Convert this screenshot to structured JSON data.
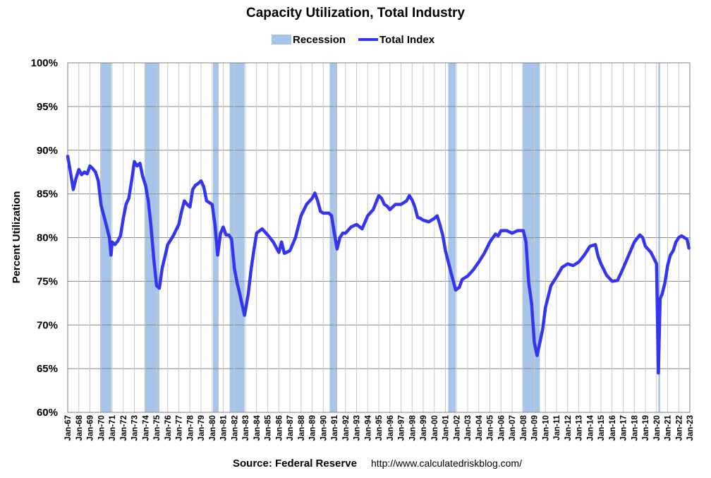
{
  "chart_data": {
    "type": "line",
    "title": "Capacity Utilization, Total Industry",
    "ylabel": "Percent Utilization",
    "xlabel": "",
    "ylim": [
      60,
      100
    ],
    "xlim": [
      1967.0,
      2023.0
    ],
    "yticks": [
      60,
      65,
      70,
      75,
      80,
      85,
      90,
      95,
      100
    ],
    "ytick_labels": [
      "60%",
      "65%",
      "70%",
      "75%",
      "80%",
      "85%",
      "90%",
      "95%",
      "100%"
    ],
    "xtick_labels": [
      "Jan-67",
      "Jan-68",
      "Jan-69",
      "Jan-70",
      "Jan-71",
      "Jan-72",
      "Jan-73",
      "Jan-74",
      "Jan-75",
      "Jan-76",
      "Jan-77",
      "Jan-78",
      "Jan-79",
      "Jan-80",
      "Jan-81",
      "Jan-82",
      "Jan-83",
      "Jan-84",
      "Jan-85",
      "Jan-86",
      "Jan-87",
      "Jan-88",
      "Jan-89",
      "Jan-90",
      "Jan-91",
      "Jan-92",
      "Jan-93",
      "Jan-94",
      "Jan-95",
      "Jan-96",
      "Jan-97",
      "Jan-98",
      "Jan-99",
      "Jan-00",
      "Jan-01",
      "Jan-02",
      "Jan-03",
      "Jan-04",
      "Jan-05",
      "Jan-06",
      "Jan-07",
      "Jan-08",
      "Jan-09",
      "Jan-10",
      "Jan-11",
      "Jan-12",
      "Jan-13",
      "Jan-14",
      "Jan-15",
      "Jan-16",
      "Jan-17",
      "Jan-18",
      "Jan-19",
      "Jan-20",
      "Jan-21",
      "Jan-22",
      "Jan-23"
    ],
    "grid": true,
    "legend": {
      "placement": "top-center",
      "items": [
        {
          "label": "Recession",
          "color": "#a7c4ea"
        },
        {
          "label": "Total Index",
          "color": "#3535f0"
        }
      ]
    },
    "recessions": [
      [
        1969.92,
        1970.92
      ],
      [
        1973.92,
        1975.25
      ],
      [
        1980.08,
        1980.58
      ],
      [
        1981.58,
        1982.92
      ],
      [
        1990.58,
        1991.25
      ],
      [
        2001.25,
        2001.92
      ],
      [
        2007.92,
        2009.5
      ],
      [
        2020.17,
        2020.33
      ]
    ],
    "series": [
      {
        "name": "Total Index",
        "color": "#3535f0",
        "x": [
          1967.0,
          1967.25,
          1967.5,
          1967.75,
          1968.0,
          1968.25,
          1968.5,
          1968.75,
          1969.0,
          1969.25,
          1969.5,
          1969.75,
          1970.0,
          1970.25,
          1970.5,
          1970.75,
          1970.9,
          1971.0,
          1971.25,
          1971.5,
          1971.75,
          1972.0,
          1972.25,
          1972.5,
          1972.75,
          1973.0,
          1973.25,
          1973.5,
          1973.75,
          1974.0,
          1974.25,
          1974.5,
          1974.75,
          1975.0,
          1975.25,
          1975.5,
          1975.75,
          1976.0,
          1976.5,
          1977.0,
          1977.25,
          1977.5,
          1977.75,
          1978.0,
          1978.25,
          1978.5,
          1978.75,
          1979.0,
          1979.25,
          1979.5,
          1979.75,
          1980.0,
          1980.25,
          1980.5,
          1980.75,
          1981.0,
          1981.25,
          1981.5,
          1981.75,
          1982.0,
          1982.25,
          1982.5,
          1982.75,
          1982.92,
          1983.25,
          1983.5,
          1983.75,
          1984.0,
          1984.5,
          1985.0,
          1985.5,
          1986.0,
          1986.25,
          1986.5,
          1987.0,
          1987.5,
          1988.0,
          1988.5,
          1989.0,
          1989.25,
          1989.5,
          1989.75,
          1990.0,
          1990.5,
          1990.75,
          1991.0,
          1991.25,
          1991.5,
          1991.75,
          1992.0,
          1992.5,
          1993.0,
          1993.5,
          1994.0,
          1994.5,
          1995.0,
          1995.25,
          1995.5,
          1995.75,
          1996.0,
          1996.5,
          1997.0,
          1997.5,
          1997.75,
          1998.0,
          1998.25,
          1998.5,
          1998.75,
          1999.0,
          1999.5,
          2000.0,
          2000.25,
          2000.5,
          2000.75,
          2001.0,
          2001.5,
          2001.92,
          2002.25,
          2002.5,
          2003.0,
          2003.5,
          2004.0,
          2004.5,
          2005.0,
          2005.5,
          2005.75,
          2006.0,
          2006.5,
          2007.0,
          2007.5,
          2008.0,
          2008.25,
          2008.5,
          2008.75,
          2009.0,
          2009.25,
          2009.5,
          2009.75,
          2010.0,
          2010.5,
          2011.0,
          2011.5,
          2012.0,
          2012.5,
          2013.0,
          2013.5,
          2014.0,
          2014.5,
          2014.75,
          2015.0,
          2015.5,
          2016.0,
          2016.5,
          2017.0,
          2017.5,
          2018.0,
          2018.5,
          2018.75,
          2019.0,
          2019.5,
          2020.0,
          2020.17,
          2020.25,
          2020.33,
          2020.5,
          2020.75,
          2021.0,
          2021.25,
          2021.5,
          2021.75,
          2022.0,
          2022.25,
          2022.5,
          2022.75,
          2022.92
        ],
        "values": [
          89.3,
          87.5,
          85.5,
          86.8,
          87.8,
          87.2,
          87.5,
          87.3,
          88.2,
          87.9,
          87.5,
          86.5,
          83.7,
          82.5,
          81.3,
          80.0,
          78.0,
          79.5,
          79.2,
          79.6,
          80.2,
          82.2,
          83.8,
          84.5,
          86.5,
          88.7,
          88.2,
          88.5,
          87.0,
          86.0,
          84.2,
          81.3,
          77.5,
          74.5,
          74.2,
          76.5,
          77.8,
          79.2,
          80.2,
          81.5,
          83.0,
          84.2,
          83.8,
          83.5,
          85.5,
          86.0,
          86.2,
          86.5,
          85.8,
          84.2,
          84.0,
          83.8,
          81.5,
          78.0,
          80.5,
          81.2,
          80.3,
          80.3,
          79.8,
          76.5,
          74.8,
          73.5,
          72.0,
          71.1,
          73.5,
          76.3,
          78.5,
          80.5,
          81.0,
          80.3,
          79.5,
          78.3,
          79.5,
          78.2,
          78.5,
          80.0,
          82.5,
          83.8,
          84.5,
          85.1,
          84.2,
          83.0,
          82.8,
          82.8,
          82.5,
          80.5,
          78.7,
          80.0,
          80.5,
          80.5,
          81.2,
          81.5,
          81.0,
          82.5,
          83.2,
          84.8,
          84.5,
          83.8,
          83.6,
          83.2,
          83.8,
          83.8,
          84.2,
          84.8,
          84.3,
          83.5,
          82.3,
          82.2,
          82.0,
          81.8,
          82.2,
          82.5,
          81.5,
          80.3,
          78.5,
          76.0,
          74.0,
          74.3,
          75.2,
          75.6,
          76.3,
          77.2,
          78.2,
          79.5,
          80.4,
          80.2,
          80.8,
          80.8,
          80.5,
          80.8,
          80.8,
          79.5,
          74.8,
          72.5,
          68.0,
          66.5,
          68.0,
          69.5,
          72.0,
          74.5,
          75.5,
          76.6,
          77.0,
          76.8,
          77.2,
          78.0,
          79.0,
          79.2,
          77.8,
          77.0,
          75.7,
          75.0,
          75.1,
          76.5,
          78.0,
          79.5,
          80.3,
          80.0,
          79.0,
          78.3,
          77.0,
          64.5,
          69.0,
          73.0,
          73.5,
          74.8,
          76.8,
          78.0,
          78.5,
          79.5,
          80.0,
          80.2,
          80.0,
          79.8,
          78.8
        ]
      }
    ]
  },
  "source": {
    "label": "Source: Federal Reserve",
    "url": "http://www.calculatedriskblog.com/"
  }
}
